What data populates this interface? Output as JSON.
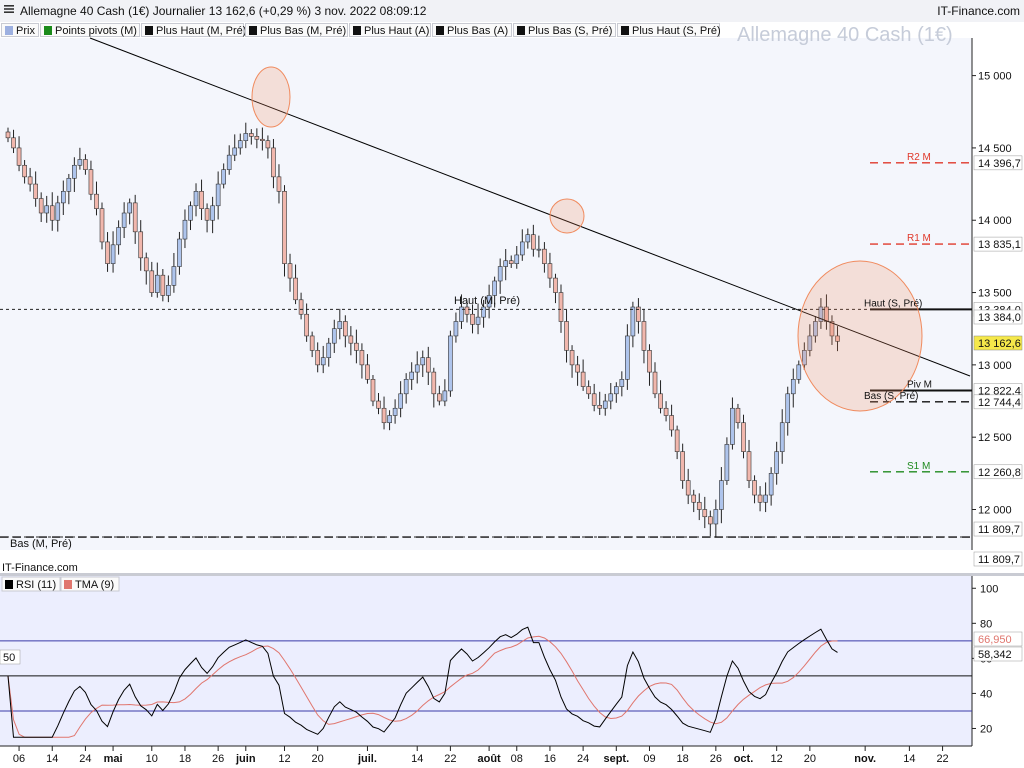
{
  "header": {
    "title": "Allemagne 40 Cash (1€)  Journalier  13 162,6 (+0,29 %)  3 nov. 2022 08:09:12",
    "brand": "IT-Finance.com",
    "watermark": "Allemagne 40 Cash (1€)"
  },
  "legend": {
    "items": [
      {
        "label": "Prix",
        "color": "#9db0e0"
      },
      {
        "label": "Points pivots (M)",
        "color": "#1a8a1a"
      },
      {
        "label": "Plus Haut (M, Pré)",
        "color": "#111111"
      },
      {
        "label": "Plus Bas (M, Pré)",
        "color": "#111111"
      },
      {
        "label": "Plus Haut (A)",
        "color": "#111111"
      },
      {
        "label": "Plus Bas (A)",
        "color": "#111111"
      },
      {
        "label": "Plus Bas (S, Pré)",
        "color": "#111111"
      },
      {
        "label": "Plus Haut (S, Pré)",
        "color": "#111111"
      }
    ]
  },
  "colors": {
    "up": "#aec4ec",
    "down": "#f1b7ad",
    "pivot_red": "#e0392b",
    "pivot_green": "#1f8a1f",
    "rsi": "#000000",
    "tma": "#e0766e",
    "trend": "#000000",
    "highlight": "#f08a5d"
  },
  "chart_data": [
    {
      "type": "candlestick",
      "title": "Allemagne 40 Cash (1€)",
      "ylim": [
        11720,
        15260
      ],
      "y_ticks": [
        {
          "v": 15000,
          "t": "15 000"
        },
        {
          "v": 14500,
          "t": "14 500"
        },
        {
          "v": 14000,
          "t": "14 000"
        },
        {
          "v": 13500,
          "t": "13 500"
        },
        {
          "v": 13000,
          "t": "13 000"
        },
        {
          "v": 12500,
          "t": "12 500"
        },
        {
          "v": 12000,
          "t": "12 000"
        }
      ],
      "x_ticks": [
        {
          "t": "06",
          "i": 2,
          "bold": false
        },
        {
          "t": "14",
          "i": 8,
          "bold": false
        },
        {
          "t": "24",
          "i": 14,
          "bold": false
        },
        {
          "t": "mai",
          "i": 19,
          "bold": true
        },
        {
          "t": "10",
          "i": 26,
          "bold": false
        },
        {
          "t": "18",
          "i": 32,
          "bold": false
        },
        {
          "t": "26",
          "i": 38,
          "bold": false
        },
        {
          "t": "juin",
          "i": 43,
          "bold": true
        },
        {
          "t": "12",
          "i": 50,
          "bold": false
        },
        {
          "t": "20",
          "i": 56,
          "bold": false
        },
        {
          "t": "juil.",
          "i": 65,
          "bold": true
        },
        {
          "t": "14",
          "i": 74,
          "bold": false
        },
        {
          "t": "22",
          "i": 80,
          "bold": false
        },
        {
          "t": "août",
          "i": 87,
          "bold": true
        },
        {
          "t": "08",
          "i": 92,
          "bold": false
        },
        {
          "t": "16",
          "i": 98,
          "bold": false
        },
        {
          "t": "24",
          "i": 104,
          "bold": false
        },
        {
          "t": "sept.",
          "i": 110,
          "bold": true
        },
        {
          "t": "09",
          "i": 116,
          "bold": false
        },
        {
          "t": "18",
          "i": 122,
          "bold": false
        },
        {
          "t": "26",
          "i": 128,
          "bold": false
        },
        {
          "t": "oct.",
          "i": 133,
          "bold": true
        },
        {
          "t": "12",
          "i": 139,
          "bold": false
        },
        {
          "t": "20",
          "i": 145,
          "bold": false
        },
        {
          "t": "nov.",
          "i": 155,
          "bold": true
        },
        {
          "t": "14",
          "i": 163,
          "bold": false
        },
        {
          "t": "22",
          "i": 169,
          "bold": false
        }
      ],
      "closes": [
        14570,
        14500,
        14380,
        14300,
        14250,
        14150,
        14050,
        14100,
        14000,
        14120,
        14200,
        14290,
        14380,
        14420,
        14350,
        14180,
        14080,
        13850,
        13700,
        13830,
        13950,
        14050,
        14120,
        13920,
        13740,
        13650,
        13500,
        13620,
        13480,
        13550,
        13680,
        13870,
        14000,
        14100,
        14200,
        14080,
        14000,
        14100,
        14250,
        14350,
        14450,
        14500,
        14550,
        14600,
        14580,
        14560,
        14550,
        14500,
        14300,
        14200,
        13700,
        13600,
        13450,
        13350,
        13200,
        13100,
        13000,
        13050,
        13150,
        13250,
        13300,
        13200,
        13150,
        13100,
        13000,
        12900,
        12750,
        12700,
        12600,
        12650,
        12700,
        12800,
        12900,
        12950,
        13000,
        13050,
        12950,
        12800,
        12750,
        12820,
        13200,
        13300,
        13400,
        13350,
        13280,
        13330,
        13400,
        13480,
        13580,
        13680,
        13720,
        13700,
        13760,
        13850,
        13900,
        13800,
        13800,
        13700,
        13600,
        13500,
        13300,
        13100,
        13000,
        12950,
        12850,
        12800,
        12720,
        12700,
        12750,
        12800,
        12850,
        12900,
        13200,
        13400,
        13300,
        13100,
        12950,
        12800,
        12700,
        12650,
        12550,
        12400,
        12200,
        12100,
        12050,
        12000,
        11950,
        11900,
        12000,
        12200,
        12450,
        12700,
        12600,
        12400,
        12200,
        12100,
        12050,
        12100,
        12250,
        12400,
        12600,
        12800,
        12900,
        13000,
        13100,
        13200,
        13300,
        13400,
        13300,
        13200,
        13163
      ],
      "annotations": [
        {
          "label": "R2 M",
          "value": 14396.7,
          "value_text": "14 396,7",
          "color": "#e0392b",
          "style": "dashed"
        },
        {
          "label": "R1 M",
          "value": 13835.1,
          "value_text": "13 835,1",
          "color": "#e0392b",
          "style": "dashed"
        },
        {
          "label": "Haut (S, Pré)",
          "value": 13384.0,
          "value_text": "13 384,0",
          "color": "#111111",
          "style": "solid"
        },
        {
          "label": "Piv M",
          "value": 12822.4,
          "value_text": "12 822,4",
          "color": "#111111",
          "style": "solid"
        },
        {
          "label": "Bas (S, Pré)",
          "value": 12744.4,
          "value_text": "12 744,4",
          "color": "#111111",
          "style": "dashed"
        },
        {
          "label": "S1 M",
          "value": 12260.8,
          "value_text": "12 260,8",
          "color": "#1f8a1f",
          "style": "dashed"
        },
        {
          "label": "Bas (M, Pré)",
          "value": 11809.7,
          "value_text": "11 809,7",
          "color": "#111111",
          "style": "dashed"
        }
      ],
      "chart_labels": {
        "haut_m_pre": "Haut (M, Pré)",
        "bas_m_pre": "Bas (M, Pré)",
        "haut_a": "13 384,0",
        "last_price": "13 162,6",
        "bas_a": "11 809,7"
      }
    },
    {
      "type": "line",
      "ylim": [
        10,
        107
      ],
      "y_ticks": [
        {
          "v": 100,
          "t": "100"
        },
        {
          "v": 80,
          "t": "80"
        },
        {
          "v": 60,
          "t": "60"
        },
        {
          "v": 40,
          "t": "40"
        },
        {
          "v": 20,
          "t": "20"
        }
      ],
      "reference_lines": [
        70,
        50,
        30
      ],
      "series": [
        {
          "name": "RSI (11)",
          "last_value": "58,342"
        },
        {
          "name": "TMA (9)",
          "last_value": "66,950"
        }
      ],
      "midline_label": "50"
    }
  ],
  "footer": {
    "source": "IT-Finance.com"
  }
}
